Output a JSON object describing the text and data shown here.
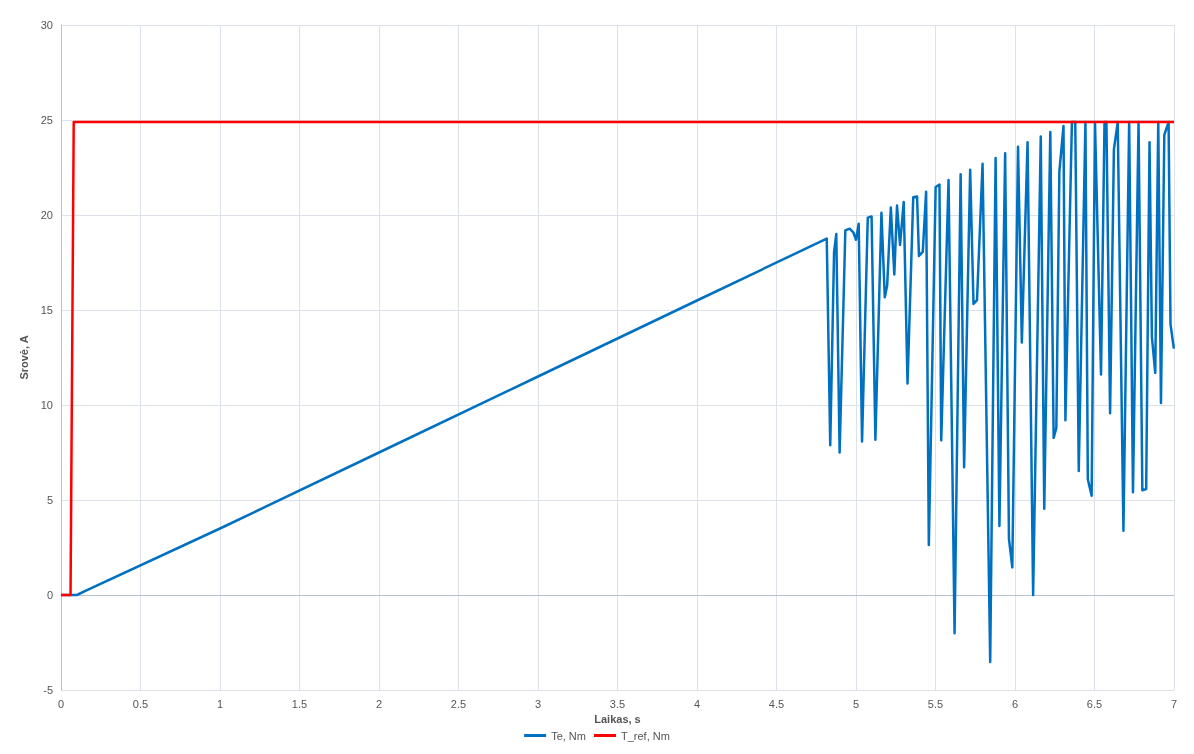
{
  "chart_data": {
    "type": "line",
    "xlabel": "Laikas, s",
    "ylabel": "Srovė, A",
    "xlim": [
      0,
      7
    ],
    "xticks": [
      0,
      0.5,
      1,
      1.5,
      2,
      2.5,
      3,
      3.5,
      4,
      4.5,
      5,
      5.5,
      6,
      6.5,
      7
    ],
    "ylim": [
      -5,
      30
    ],
    "yticks": [
      -5,
      0,
      5,
      10,
      15,
      20,
      25,
      30
    ],
    "grid": true,
    "legend": "bottom",
    "marker": "none",
    "line_style": "solid",
    "series": [
      {
        "name": "Te, Nm",
        "color": "#0070c0",
        "x": [
          0,
          0.1,
          0.15,
          1,
          2,
          3,
          4,
          4.816,
          4.838,
          4.862,
          4.876,
          4.897,
          4.933,
          4.96,
          4.983,
          5.0,
          5.017,
          5.038,
          5.074,
          5.098,
          5.122,
          5.16,
          5.181,
          5.196,
          5.219,
          5.241,
          5.258,
          5.277,
          5.3,
          5.324,
          5.36,
          5.384,
          5.396,
          5.42,
          5.441,
          5.458,
          5.501,
          5.525,
          5.536,
          5.582,
          5.62,
          5.658,
          5.68,
          5.718,
          5.739,
          5.761,
          5.796,
          5.844,
          5.878,
          5.902,
          5.938,
          5.962,
          5.983,
          6.019,
          6.043,
          6.079,
          6.114,
          6.162,
          6.184,
          6.222,
          6.243,
          6.26,
          6.279,
          6.305,
          6.317,
          6.358,
          6.379,
          6.401,
          6.443,
          6.458,
          6.482,
          6.503,
          6.541,
          6.563,
          6.575,
          6.598,
          6.622,
          6.646,
          6.682,
          6.718,
          6.742,
          6.777,
          6.801,
          6.825,
          6.846,
          6.861,
          6.882,
          6.901,
          6.918,
          6.939,
          6.966,
          6.978,
          6.999
        ],
        "values": [
          0,
          0,
          0.2,
          3.5,
          7.5,
          11.5,
          15.5,
          18.76,
          7.88,
          18.03,
          19.0,
          7.5,
          19.19,
          19.28,
          19.09,
          18.7,
          19.54,
          8.08,
          19.86,
          19.92,
          8.17,
          20.12,
          15.67,
          16.29,
          20.39,
          16.87,
          20.5,
          18.42,
          20.68,
          11.13,
          20.93,
          20.97,
          17.84,
          18.07,
          21.22,
          2.63,
          21.47,
          21.6,
          8.14,
          21.84,
          -2.01,
          22.15,
          6.72,
          22.38,
          15.32,
          15.52,
          22.7,
          -3.52,
          23.0,
          3.63,
          23.25,
          2.96,
          1.45,
          23.59,
          13.29,
          23.83,
          0,
          24.13,
          4.54,
          24.37,
          8.27,
          8.79,
          22.28,
          24.68,
          9.2,
          24.89,
          24.89,
          6.53,
          24.89,
          6.09,
          5.22,
          24.89,
          11.61,
          24.89,
          24.89,
          9.57,
          23.44,
          24.89,
          3.38,
          24.89,
          5.41,
          24.89,
          5.51,
          5.57,
          23.83,
          13.58,
          11.69,
          24.89,
          10.11,
          24.21,
          24.89,
          14.26,
          12.97
        ]
      },
      {
        "name": "T_ref, Nm",
        "color": "#ff0000",
        "x": [
          0,
          0.06,
          0.08,
          7
        ],
        "values": [
          0,
          0,
          24.9,
          24.9
        ]
      }
    ]
  }
}
